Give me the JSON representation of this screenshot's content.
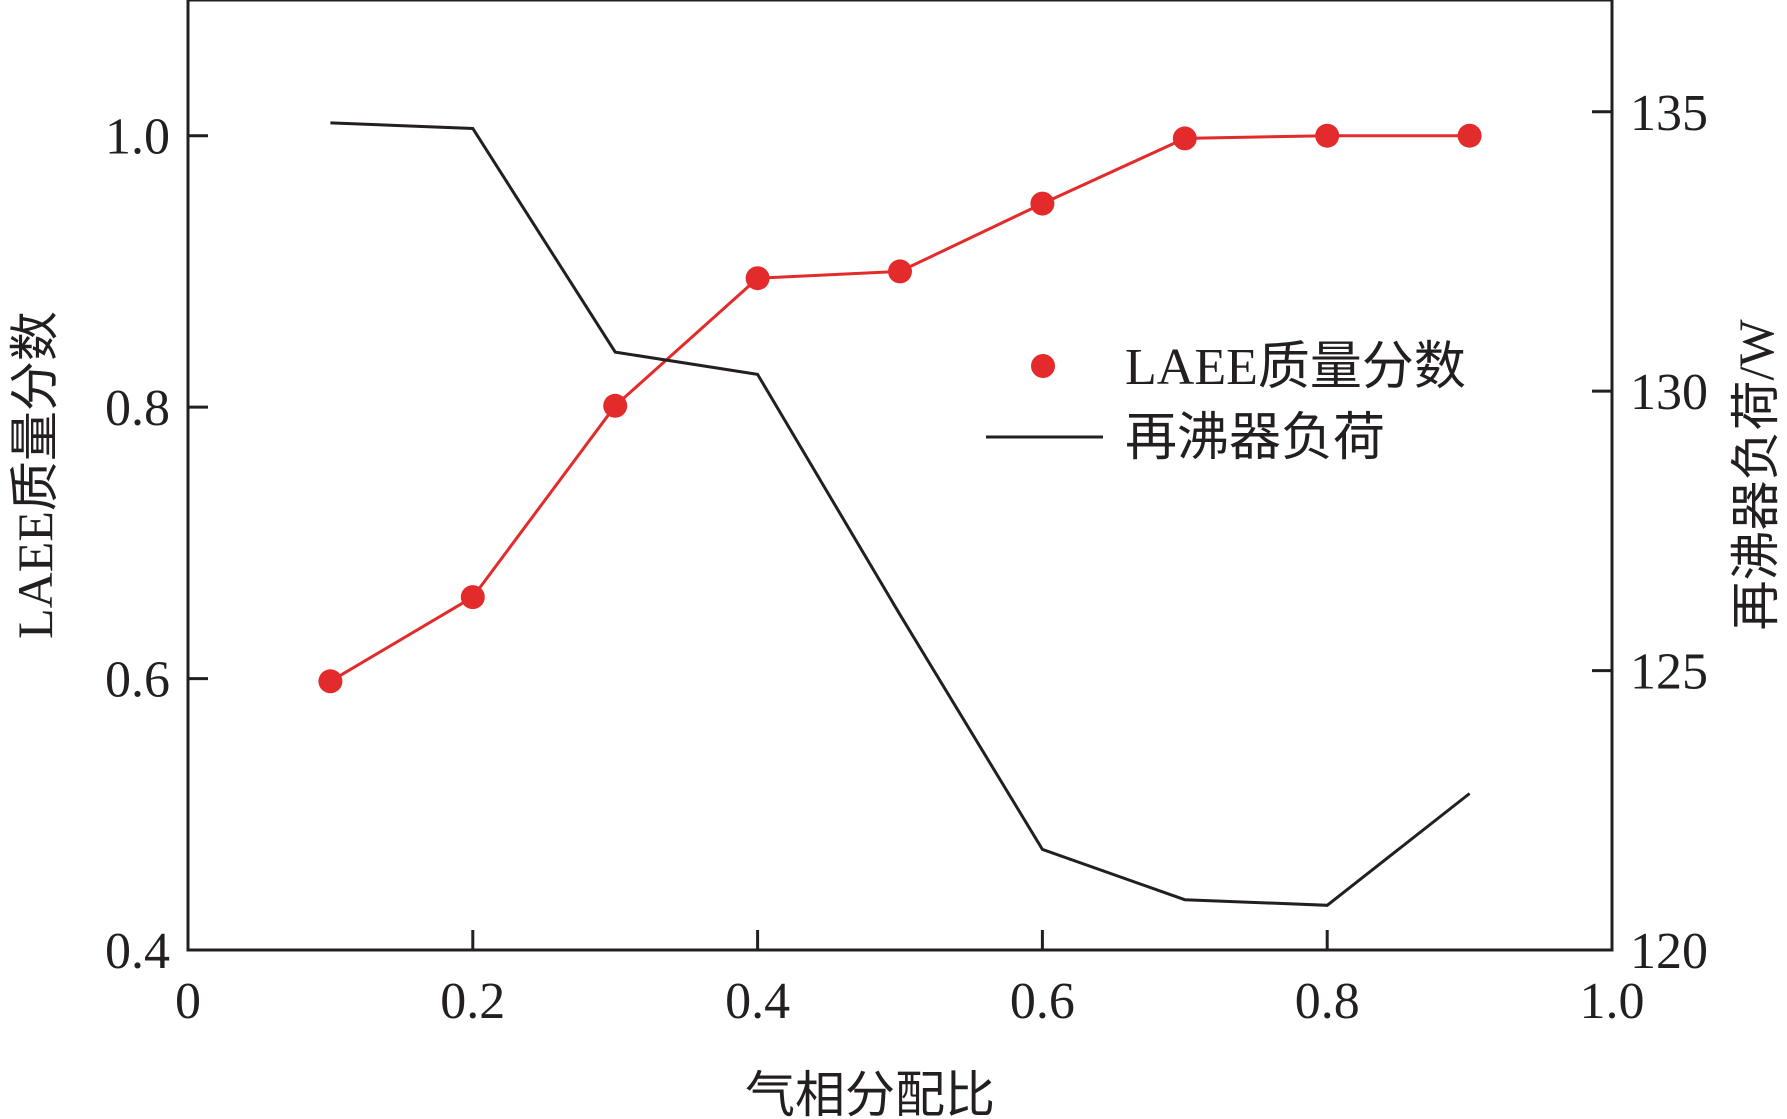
{
  "chart_data": {
    "type": "line",
    "title": "",
    "xlabel": "气相分配比",
    "ylabel_left": "LAEE质量分数",
    "ylabel_right": "再沸器负荷/W",
    "xlim": [
      0,
      1.0
    ],
    "ylim_left": [
      0.4,
      1.1
    ],
    "ylim_right": [
      120,
      137
    ],
    "x_ticks": [
      {
        "value": 0,
        "label": "0"
      },
      {
        "value": 0.2,
        "label": "0.2"
      },
      {
        "value": 0.4,
        "label": "0.4"
      },
      {
        "value": 0.6,
        "label": "0.6"
      },
      {
        "value": 0.8,
        "label": "0.8"
      },
      {
        "value": 1.0,
        "label": "1.0"
      }
    ],
    "y_left_ticks": [
      {
        "value": 0.4,
        "label": "0.4"
      },
      {
        "value": 0.6,
        "label": "0.6"
      },
      {
        "value": 0.8,
        "label": "0.8"
      },
      {
        "value": 1.0,
        "label": "1.0"
      }
    ],
    "y_right_ticks": [
      {
        "value": 120,
        "label": "120"
      },
      {
        "value": 125,
        "label": "125"
      },
      {
        "value": 130,
        "label": "130"
      },
      {
        "value": 135,
        "label": "135"
      }
    ],
    "grid": false,
    "legend_position": "center-right",
    "series": [
      {
        "name": "LAEE质量分数",
        "axis": "left",
        "style": "line-markers",
        "color": "#e32b2b",
        "x": [
          0.1,
          0.2,
          0.3,
          0.4,
          0.5,
          0.6,
          0.7,
          0.8,
          0.9
        ],
        "y": [
          0.598,
          0.66,
          0.801,
          0.895,
          0.9,
          0.95,
          0.998,
          1.0,
          1.0
        ]
      },
      {
        "name": "再沸器负荷",
        "axis": "right",
        "style": "line",
        "color": "#231f20",
        "x": [
          0.1,
          0.2,
          0.3,
          0.4,
          0.5,
          0.6,
          0.7,
          0.8,
          0.9
        ],
        "y": [
          134.8,
          134.7,
          130.7,
          130.3,
          126.0,
          121.8,
          120.9,
          120.8,
          122.8
        ]
      }
    ]
  }
}
